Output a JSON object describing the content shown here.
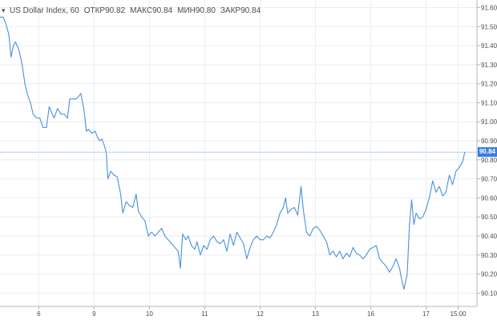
{
  "legend": {
    "symbol": "US Dollar Index, 60",
    "open_label": "ОТКР",
    "open_value": "90.82",
    "high_label": "МАКС",
    "high_value": "90.84",
    "low_label": "МИН",
    "low_value": "90.80",
    "close_label": "ЗАКР",
    "close_value": "90.84"
  },
  "last_price_label": "90.84",
  "colors": {
    "line": "#4a8fdd",
    "grid": "#e9eef2",
    "axis_text": "#4a4a4a",
    "price_tag": "#3b7ddd",
    "price_line": "#6d9ee0"
  },
  "chart_data": {
    "type": "line",
    "title": "US Dollar Index, 60",
    "xlabel": "",
    "ylabel": "",
    "ylim": [
      90.03,
      91.64
    ],
    "y_ticks": [
      "91.60",
      "91.50",
      "91.40",
      "91.30",
      "91.20",
      "91.10",
      "91.00",
      "90.90",
      "90.80",
      "90.70",
      "90.60",
      "90.50",
      "90.40",
      "90.30",
      "90.20",
      "90.10"
    ],
    "x_ticks": [
      {
        "label": "6",
        "x": 7.0
      },
      {
        "label": "9",
        "x": 17.0
      },
      {
        "label": "10",
        "x": 27.0
      },
      {
        "label": "11",
        "x": 37.0
      },
      {
        "label": "12",
        "x": 47.0
      },
      {
        "label": "13",
        "x": 57.0
      },
      {
        "label": "16",
        "x": 67.0
      },
      {
        "label": "17",
        "x": 77.0
      },
      {
        "label": "15:00",
        "x": 82.8
      }
    ],
    "xlim": [
      0,
      86.2
    ],
    "last_value": 90.84,
    "series": [
      {
        "name": "US Dollar Index",
        "values": [
          [
            0.0,
            91.55
          ],
          [
            0.6,
            91.55
          ],
          [
            1.0,
            91.52
          ],
          [
            1.6,
            91.46
          ],
          [
            2.0,
            91.34
          ],
          [
            2.4,
            91.4
          ],
          [
            2.8,
            91.42
          ],
          [
            3.4,
            91.38
          ],
          [
            4.0,
            91.3
          ],
          [
            4.5,
            91.2
          ],
          [
            5.0,
            91.14
          ],
          [
            5.5,
            91.1
          ],
          [
            6.0,
            91.04
          ],
          [
            6.6,
            91.02
          ],
          [
            7.2,
            91.02
          ],
          [
            7.8,
            90.97
          ],
          [
            8.4,
            90.97
          ],
          [
            8.9,
            91.08
          ],
          [
            9.3,
            91.05
          ],
          [
            9.8,
            91.02
          ],
          [
            10.4,
            91.07
          ],
          [
            11.0,
            91.04
          ],
          [
            11.6,
            91.04
          ],
          [
            12.2,
            91.02
          ],
          [
            12.6,
            91.12
          ],
          [
            13.2,
            91.12
          ],
          [
            13.8,
            91.12
          ],
          [
            14.4,
            91.14
          ],
          [
            14.6,
            91.15
          ],
          [
            15.2,
            91.06
          ],
          [
            15.6,
            90.95
          ],
          [
            16.0,
            90.96
          ],
          [
            16.6,
            90.94
          ],
          [
            17.2,
            90.95
          ],
          [
            17.6,
            90.92
          ],
          [
            18.0,
            90.9
          ],
          [
            18.4,
            90.91
          ],
          [
            18.8,
            90.88
          ],
          [
            19.2,
            90.84
          ],
          [
            19.5,
            90.7
          ],
          [
            20.0,
            90.74
          ],
          [
            20.6,
            90.72
          ],
          [
            21.2,
            90.71
          ],
          [
            21.8,
            90.62
          ],
          [
            22.2,
            90.52
          ],
          [
            22.8,
            90.58
          ],
          [
            23.4,
            90.56
          ],
          [
            24.0,
            90.55
          ],
          [
            24.6,
            90.62
          ],
          [
            25.0,
            90.53
          ],
          [
            25.6,
            90.5
          ],
          [
            26.2,
            90.48
          ],
          [
            26.8,
            90.4
          ],
          [
            27.4,
            90.42
          ],
          [
            28.0,
            90.4
          ],
          [
            28.6,
            90.42
          ],
          [
            29.2,
            90.44
          ],
          [
            29.8,
            90.4
          ],
          [
            30.4,
            90.38
          ],
          [
            31.0,
            90.36
          ],
          [
            31.6,
            90.34
          ],
          [
            32.2,
            90.32
          ],
          [
            32.6,
            90.23
          ],
          [
            33.0,
            90.41
          ],
          [
            33.6,
            90.38
          ],
          [
            34.0,
            90.4
          ],
          [
            34.6,
            90.35
          ],
          [
            35.2,
            90.33
          ],
          [
            35.6,
            90.37
          ],
          [
            36.2,
            90.3
          ],
          [
            36.8,
            90.35
          ],
          [
            37.4,
            90.33
          ],
          [
            38.0,
            90.38
          ],
          [
            38.6,
            90.4
          ],
          [
            39.2,
            90.37
          ],
          [
            39.8,
            90.36
          ],
          [
            40.4,
            90.38
          ],
          [
            41.0,
            90.32
          ],
          [
            41.6,
            90.41
          ],
          [
            42.2,
            90.35
          ],
          [
            42.8,
            90.42
          ],
          [
            43.4,
            90.39
          ],
          [
            44.0,
            90.36
          ],
          [
            44.6,
            90.28
          ],
          [
            45.2,
            90.34
          ],
          [
            45.8,
            90.38
          ],
          [
            46.4,
            90.4
          ],
          [
            47.0,
            90.38
          ],
          [
            47.6,
            90.38
          ],
          [
            48.2,
            90.4
          ],
          [
            48.8,
            90.39
          ],
          [
            49.4,
            90.42
          ],
          [
            50.0,
            90.46
          ],
          [
            50.6,
            90.52
          ],
          [
            51.2,
            90.55
          ],
          [
            51.6,
            90.6
          ],
          [
            52.0,
            90.52
          ],
          [
            52.6,
            90.54
          ],
          [
            53.2,
            90.55
          ],
          [
            53.8,
            90.51
          ],
          [
            54.4,
            90.66
          ],
          [
            54.8,
            90.54
          ],
          [
            55.4,
            90.42
          ],
          [
            56.0,
            90.4
          ],
          [
            56.6,
            90.44
          ],
          [
            57.2,
            90.45
          ],
          [
            57.8,
            90.43
          ],
          [
            58.4,
            90.4
          ],
          [
            59.0,
            90.37
          ],
          [
            59.6,
            90.3
          ],
          [
            60.2,
            90.32
          ],
          [
            60.8,
            90.29
          ],
          [
            61.4,
            90.32
          ],
          [
            62.0,
            90.28
          ],
          [
            62.6,
            90.31
          ],
          [
            63.2,
            90.29
          ],
          [
            63.8,
            90.34
          ],
          [
            64.4,
            90.31
          ],
          [
            65.0,
            90.3
          ],
          [
            65.6,
            90.28
          ],
          [
            66.2,
            90.3
          ],
          [
            66.8,
            90.33
          ],
          [
            67.4,
            90.34
          ],
          [
            68.0,
            90.35
          ],
          [
            68.6,
            90.28
          ],
          [
            69.2,
            90.26
          ],
          [
            69.8,
            90.24
          ],
          [
            70.4,
            90.21
          ],
          [
            71.0,
            90.24
          ],
          [
            71.6,
            90.28
          ],
          [
            72.2,
            90.23
          ],
          [
            72.6,
            90.17
          ],
          [
            73.0,
            90.12
          ],
          [
            73.6,
            90.2
          ],
          [
            74.0,
            90.46
          ],
          [
            74.4,
            90.59
          ],
          [
            74.8,
            90.46
          ],
          [
            75.2,
            90.52
          ],
          [
            75.8,
            90.49
          ],
          [
            76.4,
            90.5
          ],
          [
            77.0,
            90.54
          ],
          [
            77.6,
            90.6
          ],
          [
            78.2,
            90.69
          ],
          [
            78.8,
            90.63
          ],
          [
            79.4,
            90.66
          ],
          [
            80.0,
            90.61
          ],
          [
            80.6,
            90.63
          ],
          [
            81.2,
            90.72
          ],
          [
            81.8,
            90.67
          ],
          [
            82.4,
            90.74
          ],
          [
            83.0,
            90.76
          ],
          [
            83.6,
            90.79
          ],
          [
            84.0,
            90.84
          ]
        ]
      }
    ]
  }
}
